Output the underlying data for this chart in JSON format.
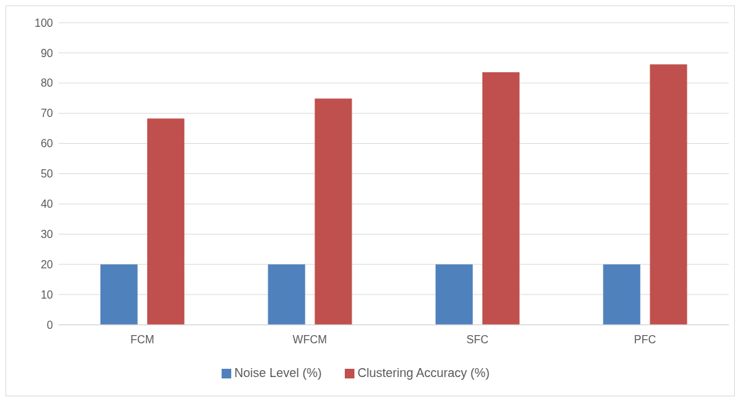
{
  "chart_data": {
    "type": "bar",
    "categories": [
      "FCM",
      "WFCM",
      "SFC",
      "PFC"
    ],
    "series": [
      {
        "name": "Noise Level (%)",
        "color": "#4f81bd",
        "values": [
          20,
          20,
          20,
          20
        ]
      },
      {
        "name": "Clustering Accuracy (%)",
        "color": "#c0504d",
        "values": [
          68.3,
          74.9,
          83.6,
          86.2
        ]
      }
    ],
    "ylim": [
      0,
      100
    ],
    "yticks": [
      0,
      10,
      20,
      30,
      40,
      50,
      60,
      70,
      80,
      90,
      100
    ],
    "grid": "y",
    "legend": "bottom"
  }
}
